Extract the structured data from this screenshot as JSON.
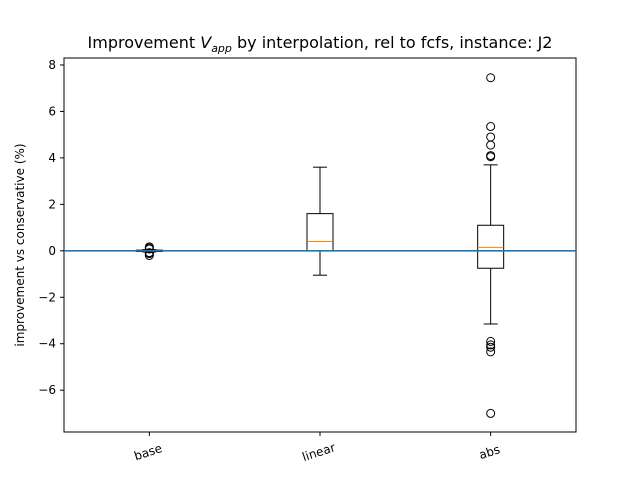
{
  "chart_data": {
    "type": "box",
    "title_prefix": "Improvement ",
    "title_var": "V",
    "title_sub": "app",
    "title_suffix": " by interpolation, rel to fcfs, instance: J2",
    "xlabel": "",
    "ylabel": "improvement vs conservative (%)",
    "ylim": [
      -7.8,
      8.3
    ],
    "yticks": [
      -6,
      -4,
      -2,
      0,
      2,
      4,
      6,
      8
    ],
    "ytick_labels": [
      "−6",
      "−4",
      "−2",
      "0",
      "2",
      "4",
      "6",
      "8"
    ],
    "reference_line_y": 0,
    "categories": [
      "base",
      "linear",
      "abs"
    ],
    "boxes": [
      {
        "name": "base",
        "q1": -0.03,
        "median": 0.0,
        "q3": 0.03,
        "whisker_low": -0.05,
        "whisker_high": 0.05,
        "outliers": [
          0.17,
          0.12,
          0.08,
          -0.08,
          -0.12,
          -0.2
        ]
      },
      {
        "name": "linear",
        "q1": 0.0,
        "median": 0.4,
        "q3": 1.6,
        "whisker_low": -1.05,
        "whisker_high": 3.6,
        "outliers": []
      },
      {
        "name": "abs",
        "q1": -0.75,
        "median": 0.15,
        "q3": 1.1,
        "whisker_low": -3.15,
        "whisker_high": 3.7,
        "outliers": [
          7.45,
          5.35,
          4.9,
          4.55,
          4.1,
          4.05,
          -3.9,
          -4.05,
          -4.15,
          -4.35,
          -7.0
        ]
      }
    ],
    "colors": {
      "box": "#000000",
      "median": "#ff7f0e",
      "reference": "#1f77b4",
      "outlier": "#000000"
    }
  }
}
